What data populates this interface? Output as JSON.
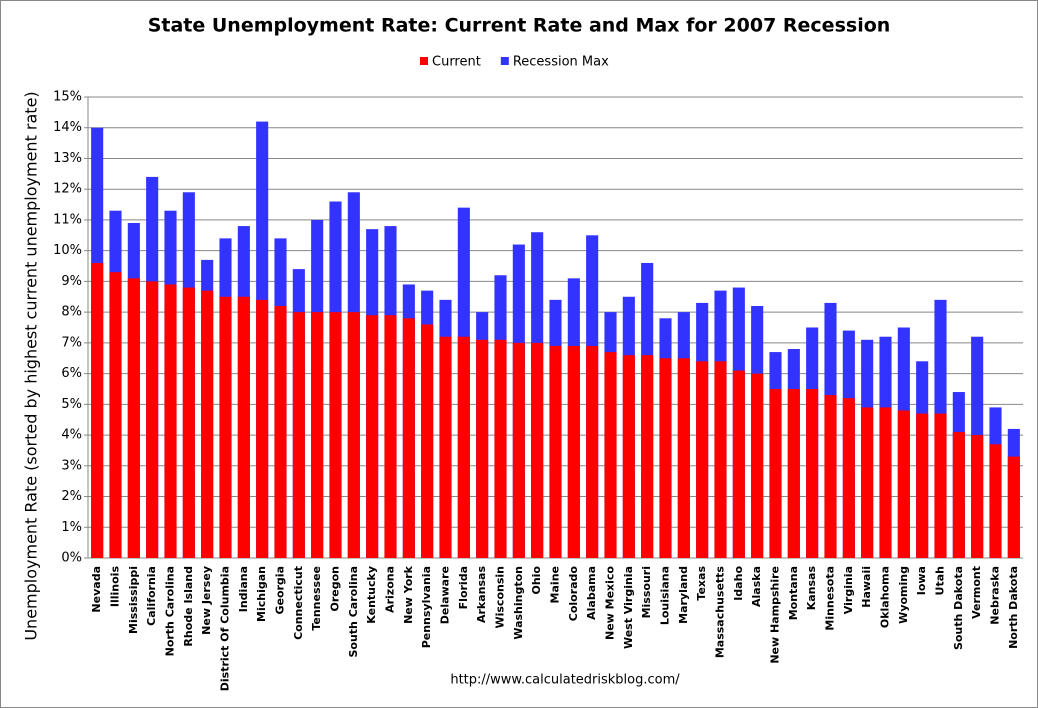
{
  "chart_data": {
    "type": "overlap_bar",
    "title": "State Unemployment Rate: Current Rate and Max for 2007 Recession",
    "y_label": "Unemployment Rate (sorted by highest current unemployment rate)",
    "source": "http://www.calculatedriskblog.com/",
    "categories": [
      "Nevada",
      "Illinois",
      "Mississippi",
      "California",
      "North Carolina",
      "Rhode Island",
      "New Jersey",
      "District Of Columbia",
      "Indiana",
      "Michigan",
      "Georgia",
      "Connecticut",
      "Tennessee",
      "Oregon",
      "South Carolina",
      "Kentucky",
      "Arizona",
      "New York",
      "Pennsylvania",
      "Delaware",
      "Florida",
      "Arkansas",
      "Wisconsin",
      "Washington",
      "Ohio",
      "Maine",
      "Colorado",
      "Alabama",
      "New Mexico",
      "West Virginia",
      "Missouri",
      "Louisiana",
      "Maryland",
      "Texas",
      "Massachusetts",
      "Idaho",
      "Alaska",
      "New Hampshire",
      "Montana",
      "Kansas",
      "Minnesota",
      "Virginia",
      "Hawaii",
      "Oklahoma",
      "Wyoming",
      "Iowa",
      "Utah",
      "South Dakota",
      "Vermont",
      "Nebraska",
      "North Dakota"
    ],
    "series": [
      {
        "name": "Current",
        "color": "#ff0000",
        "values": [
          9.6,
          9.3,
          9.1,
          9.0,
          8.9,
          8.8,
          8.7,
          8.5,
          8.5,
          8.4,
          8.2,
          8.0,
          8.0,
          8.0,
          8.0,
          7.9,
          7.9,
          7.8,
          7.6,
          7.2,
          7.2,
          7.1,
          7.1,
          7.0,
          7.0,
          6.9,
          6.9,
          6.9,
          6.7,
          6.6,
          6.6,
          6.5,
          6.5,
          6.4,
          6.4,
          6.1,
          6.0,
          5.5,
          5.5,
          5.5,
          5.3,
          5.2,
          4.9,
          4.9,
          4.8,
          4.7,
          4.7,
          4.1,
          4.0,
          3.7,
          3.3
        ]
      },
      {
        "name": "Recession Max",
        "color": "#3333ff",
        "values": [
          14.0,
          11.3,
          10.9,
          12.4,
          11.3,
          11.9,
          9.7,
          10.4,
          10.8,
          14.2,
          10.4,
          9.4,
          11.0,
          11.6,
          11.9,
          10.7,
          10.8,
          8.9,
          8.7,
          8.4,
          11.4,
          8.0,
          9.2,
          10.2,
          10.6,
          8.4,
          9.1,
          10.5,
          8.0,
          8.5,
          9.6,
          7.8,
          8.0,
          8.3,
          8.7,
          8.8,
          8.2,
          6.7,
          6.8,
          7.5,
          8.3,
          7.4,
          7.1,
          7.2,
          7.5,
          6.4,
          8.4,
          5.4,
          7.2,
          4.9,
          4.2
        ]
      }
    ],
    "ylim": [
      0,
      15
    ],
    "yticks": [
      {
        "value": 0,
        "label": "0%"
      },
      {
        "value": 1,
        "label": "1%"
      },
      {
        "value": 2,
        "label": "2%"
      },
      {
        "value": 3,
        "label": "3%"
      },
      {
        "value": 4,
        "label": "4%"
      },
      {
        "value": 5,
        "label": "5%"
      },
      {
        "value": 6,
        "label": "6%"
      },
      {
        "value": 7,
        "label": "7%"
      },
      {
        "value": 8,
        "label": "8%"
      },
      {
        "value": 9,
        "label": "9%"
      },
      {
        "value": 10,
        "label": "10%"
      },
      {
        "value": 11,
        "label": "11%"
      },
      {
        "value": 12,
        "label": "12%"
      },
      {
        "value": 13,
        "label": "13%"
      },
      {
        "value": 14,
        "label": "14%"
      },
      {
        "value": 15,
        "label": "15%"
      }
    ],
    "grid": true,
    "legend": "top"
  }
}
